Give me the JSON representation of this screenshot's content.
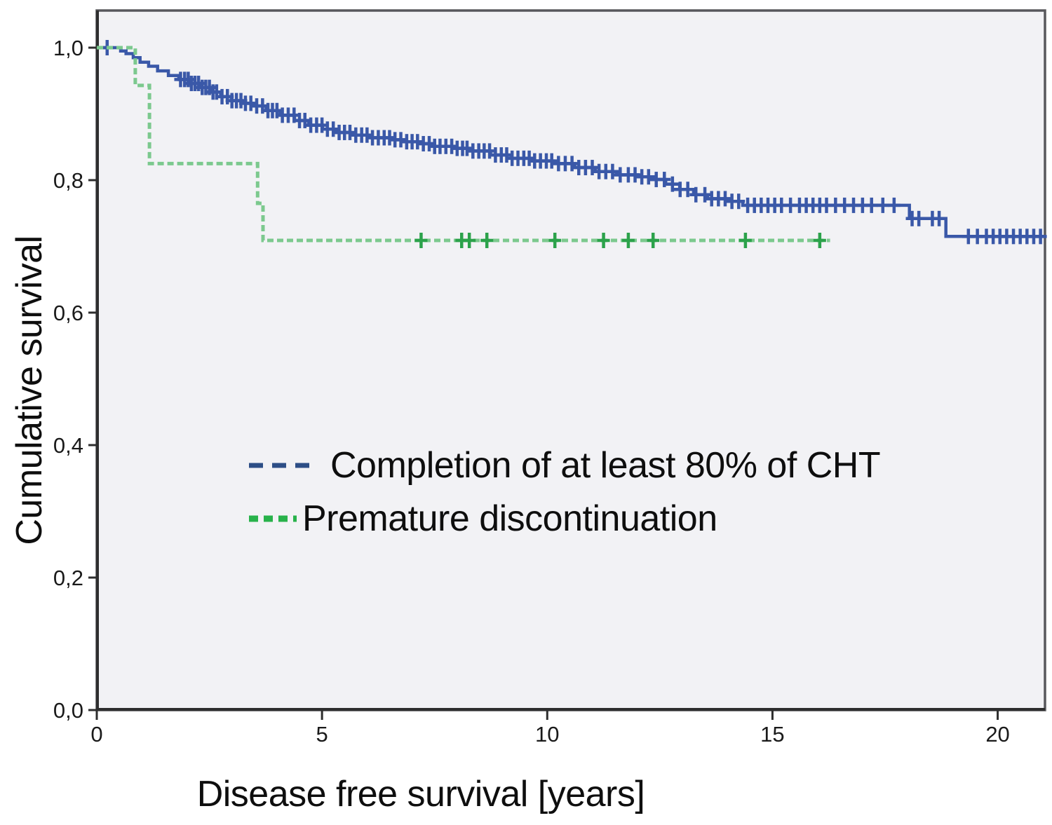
{
  "chart_data": {
    "type": "line",
    "subtype": "kaplan-meier-step",
    "title": "",
    "xlabel": "Disease free survival [years]",
    "ylabel": "Cumulative survival",
    "xlim": [
      0,
      21.05
    ],
    "ylim": [
      0,
      1.056
    ],
    "grid": false,
    "legend_position": "inside-left-middle",
    "xticks": [
      {
        "v": 0,
        "label": "0"
      },
      {
        "v": 5,
        "label": "5"
      },
      {
        "v": 10,
        "label": "10"
      },
      {
        "v": 15,
        "label": "15"
      },
      {
        "v": 20,
        "label": "20"
      }
    ],
    "yticks": [
      {
        "v": 1.0,
        "label": "1,0"
      },
      {
        "v": 0.8,
        "label": "0,8"
      },
      {
        "v": 0.6,
        "label": "0,6"
      },
      {
        "v": 0.4,
        "label": "0,4"
      },
      {
        "v": 0.2,
        "label": "0,2"
      },
      {
        "v": 0.0,
        "label": "0,0"
      }
    ],
    "colors": {
      "plot_bg": "#f2f2f5",
      "frame": "#58585c",
      "axis": "#2e2e2e",
      "tick_text": "#1a1a1a",
      "text": "#0e0e0e"
    },
    "series": [
      {
        "name": "Completion of at least 80% of CHT",
        "color": "#3a58a8",
        "censor_color": "#3a58a8",
        "legend_color": "#2d4e86",
        "line_style": "solid",
        "points": [
          [
            0,
            1.0
          ],
          [
            0.47,
            1.0
          ],
          [
            0.53,
            0.995
          ],
          [
            0.65,
            0.991
          ],
          [
            0.81,
            0.985
          ],
          [
            0.96,
            0.978
          ],
          [
            1.15,
            0.972
          ],
          [
            1.35,
            0.965
          ],
          [
            1.59,
            0.958
          ],
          [
            1.82,
            0.952
          ],
          [
            2.05,
            0.946
          ],
          [
            2.29,
            0.94
          ],
          [
            2.52,
            0.933
          ],
          [
            2.75,
            0.926
          ],
          [
            2.99,
            0.92
          ],
          [
            3.22,
            0.916
          ],
          [
            3.45,
            0.912
          ],
          [
            3.76,
            0.905
          ],
          [
            4.07,
            0.898
          ],
          [
            4.39,
            0.89
          ],
          [
            4.7,
            0.883
          ],
          [
            5.01,
            0.877
          ],
          [
            5.32,
            0.872
          ],
          [
            5.63,
            0.868
          ],
          [
            6.1,
            0.864
          ],
          [
            6.56,
            0.861
          ],
          [
            6.87,
            0.858
          ],
          [
            7.19,
            0.855
          ],
          [
            7.5,
            0.851
          ],
          [
            7.89,
            0.848
          ],
          [
            8.27,
            0.844
          ],
          [
            8.74,
            0.838
          ],
          [
            9.21,
            0.833
          ],
          [
            9.67,
            0.829
          ],
          [
            10.14,
            0.825
          ],
          [
            10.61,
            0.819
          ],
          [
            11.07,
            0.813
          ],
          [
            11.54,
            0.808
          ],
          [
            12.01,
            0.805
          ],
          [
            12.32,
            0.801
          ],
          [
            12.63,
            0.794
          ],
          [
            12.94,
            0.786
          ],
          [
            13.25,
            0.778
          ],
          [
            13.56,
            0.772
          ],
          [
            14.03,
            0.768
          ],
          [
            14.34,
            0.762
          ],
          [
            18.04,
            0.762
          ],
          [
            18.04,
            0.742
          ],
          [
            18.85,
            0.742
          ],
          [
            18.85,
            0.715
          ],
          [
            21.03,
            0.715
          ]
        ],
        "censor_years": [
          0.23,
          1.86,
          1.95,
          2.03,
          2.1,
          2.18,
          2.26,
          2.34,
          2.42,
          2.5,
          2.58,
          2.66,
          2.78,
          2.9,
          3.0,
          3.1,
          3.2,
          3.3,
          3.42,
          3.55,
          3.68,
          3.8,
          3.9,
          4.0,
          4.12,
          4.25,
          4.38,
          4.5,
          4.62,
          4.75,
          4.88,
          5.0,
          5.12,
          5.25,
          5.38,
          5.5,
          5.62,
          5.75,
          5.88,
          6.0,
          6.12,
          6.25,
          6.38,
          6.5,
          6.62,
          6.75,
          6.88,
          7.0,
          7.12,
          7.25,
          7.38,
          7.5,
          7.62,
          7.75,
          7.88,
          8.0,
          8.12,
          8.22,
          8.35,
          8.48,
          8.6,
          8.72,
          8.85,
          8.98,
          9.1,
          9.22,
          9.35,
          9.48,
          9.6,
          9.72,
          9.85,
          9.98,
          10.1,
          10.25,
          10.4,
          10.55,
          10.7,
          10.85,
          11.0,
          11.15,
          11.3,
          11.45,
          11.62,
          11.8,
          11.95,
          12.1,
          12.25,
          12.42,
          12.6,
          12.78,
          12.95,
          13.12,
          13.3,
          13.5,
          13.65,
          13.8,
          13.95,
          14.1,
          14.25,
          14.45,
          14.6,
          14.75,
          14.9,
          15.05,
          15.2,
          15.4,
          15.6,
          15.75,
          15.9,
          16.05,
          16.2,
          16.4,
          16.6,
          16.8,
          17.0,
          17.2,
          17.45,
          17.7,
          18.1,
          18.25,
          18.55,
          18.7,
          19.35,
          19.55,
          19.75,
          19.9,
          20.05,
          20.2,
          20.35,
          20.5,
          20.65,
          20.8,
          20.95
        ]
      },
      {
        "name": "Premature discontinuation",
        "color": "#7cc98e",
        "censor_color": "#2ca24b",
        "legend_color": "#28b24a",
        "line_style": "dashed",
        "points": [
          [
            0,
            1.0
          ],
          [
            0.855,
            1.0
          ],
          [
            0.855,
            0.943
          ],
          [
            1.17,
            0.943
          ],
          [
            1.17,
            0.825
          ],
          [
            3.57,
            0.825
          ],
          [
            3.57,
            0.765
          ],
          [
            3.69,
            0.765
          ],
          [
            3.69,
            0.709
          ],
          [
            16.28,
            0.709
          ]
        ],
        "censor_years": [
          7.2,
          8.1,
          8.27,
          8.66,
          10.17,
          11.25,
          11.8,
          12.35,
          14.4,
          16.05
        ]
      }
    ]
  }
}
